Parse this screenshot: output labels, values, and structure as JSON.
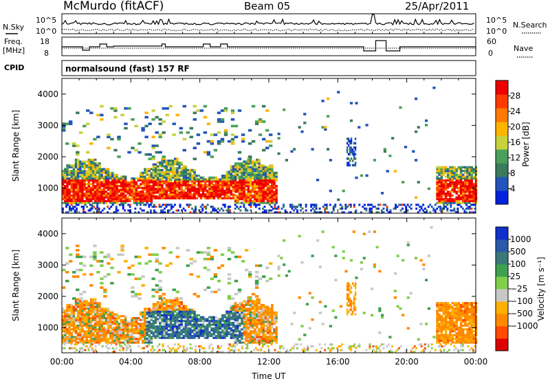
{
  "header": {
    "station": "McMurdo (fitACF)",
    "beam": "Beam 05",
    "date": "25/Apr/2011"
  },
  "top_panels": {
    "nsky_label": "N.Sky",
    "nsky_ticks": [
      "10^5",
      "10^0"
    ],
    "nsearch_label": "N.Search",
    "nsearch_ticks": [
      "10^5",
      "10^0"
    ],
    "freq_label_1": "Freq.",
    "freq_label_2": "[MHz]",
    "freq_ticks": [
      "18",
      "8"
    ],
    "nave_label": "Nave",
    "nave_ticks": [
      "60",
      "0"
    ],
    "cpid_label": "CPID",
    "cpid_text": "normalsound (fast) 157 RF"
  },
  "colors": {
    "power_scale": [
      "#0022dd",
      "#2255bb",
      "#3b7a5a",
      "#4aa05a",
      "#c8d23c",
      "#ffb400",
      "#ff7a00",
      "#ff3a00",
      "#ee0000"
    ],
    "velocity_scale": [
      "#dd0000",
      "#ff4a00",
      "#ff8a00",
      "#ffb000",
      "#c8c8c8",
      "#7fcf4a",
      "#3fa050",
      "#3a7a78",
      "#2a5aaa",
      "#1030cc"
    ]
  },
  "chart_data": [
    {
      "type": "heatmap",
      "name": "power",
      "xlabel": "",
      "ylabel": "Slant Range [km]",
      "xlim": [
        0,
        24
      ],
      "ylim": [
        200,
        4500
      ],
      "yticks": [
        "1000",
        "2000",
        "3000",
        "4000"
      ],
      "colorbar": {
        "label": "Power [dB]",
        "ticks": [
          "4",
          "8",
          "12",
          "16",
          "20",
          "24",
          "28"
        ]
      }
    },
    {
      "type": "heatmap",
      "name": "velocity",
      "xlabel": "Time UT",
      "ylabel": "Slant Range [km]",
      "xlim": [
        0,
        24
      ],
      "ylim": [
        200,
        4500
      ],
      "xticks": [
        "00:00",
        "04:00",
        "08:00",
        "12:00",
        "16:00",
        "20:00",
        "00:00"
      ],
      "yticks": [
        "1000",
        "2000",
        "3000",
        "4000"
      ],
      "colorbar": {
        "label": "Velocity [m s⁻¹]",
        "ticks": [
          "1000",
          "500",
          "100",
          "25",
          "−25",
          "−100",
          "−500",
          "−1000"
        ]
      }
    }
  ]
}
